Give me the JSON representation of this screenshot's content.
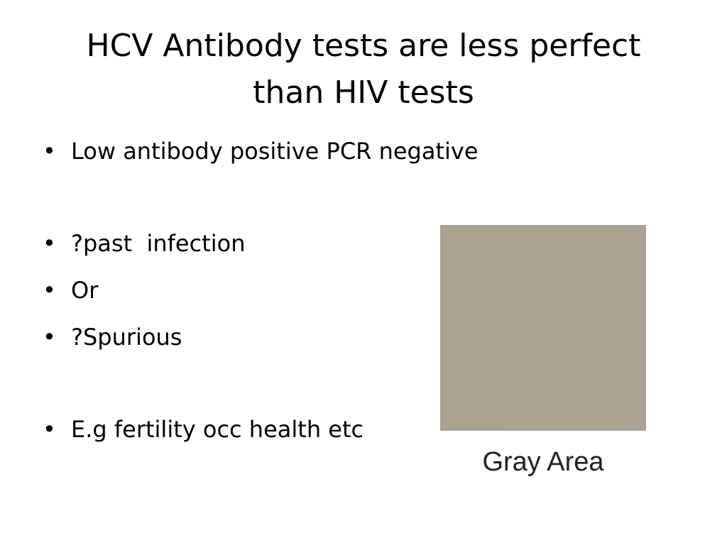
{
  "slide": {
    "title": "HCV Antibody tests are less perfect than HIV tests",
    "bullets": [
      "Low antibody positive PCR negative",
      "?past  infection",
      "Or",
      "?Spurious",
      "E.g fertility occ health etc"
    ],
    "image": {
      "caption": "Gray Area"
    }
  }
}
